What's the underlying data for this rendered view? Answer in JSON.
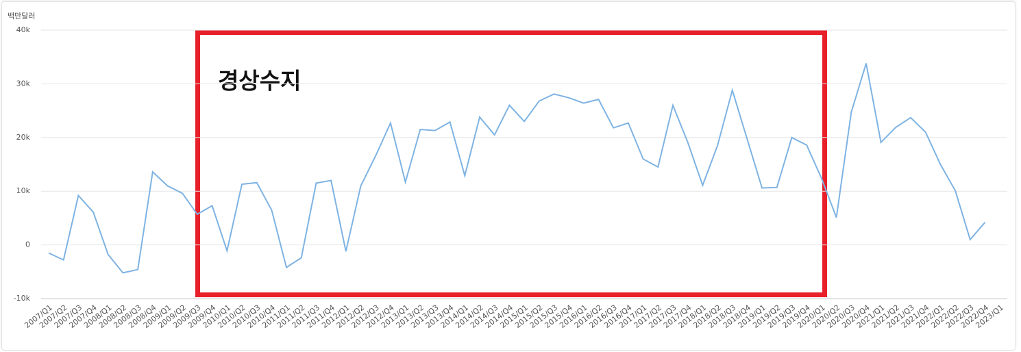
{
  "chart_data": {
    "type": "line",
    "y_label": "백만달러",
    "annotation": "경상수지",
    "color": "#7eb3e3",
    "ylim": [
      -10000,
      40000
    ],
    "yticks": [
      {
        "value": -10000,
        "label": "-10k"
      },
      0,
      {
        "value": 10000,
        "label": "10k"
      },
      {
        "value": 20000,
        "label": "20k"
      },
      {
        "value": 30000,
        "label": "30k"
      },
      {
        "value": 40000,
        "label": "40k"
      }
    ],
    "grid": true,
    "categories": [
      "2007/Q1",
      "2007/Q2",
      "2007/Q3",
      "2007/Q4",
      "2008/Q1",
      "2008/Q2",
      "2008/Q3",
      "2008/Q4",
      "2009/Q1",
      "2009/Q2",
      "2009/Q3",
      "2009/Q4",
      "2010/Q1",
      "2010/Q2",
      "2010/Q3",
      "2010/Q4",
      "2011/Q1",
      "2011/Q2",
      "2011/Q3",
      "2011/Q4",
      "2012/Q1",
      "2012/Q2",
      "2012/Q3",
      "2012/Q4",
      "2013/Q1",
      "2013/Q2",
      "2013/Q3",
      "2013/Q4",
      "2014/Q1",
      "2014/Q2",
      "2014/Q3",
      "2014/Q4",
      "2015/Q1",
      "2015/Q2",
      "2015/Q3",
      "2015/Q4",
      "2016/Q1",
      "2016/Q2",
      "2016/Q3",
      "2016/Q4",
      "2017/Q1",
      "2017/Q2",
      "2017/Q3",
      "2017/Q4",
      "2018/Q1",
      "2018/Q2",
      "2018/Q3",
      "2018/Q4",
      "2019/Q1",
      "2019/Q2",
      "2019/Q3",
      "2019/Q4",
      "2020/Q1",
      "2020/Q2",
      "2020/Q3",
      "2020/Q4",
      "2021/Q1",
      "2021/Q2",
      "2021/Q3",
      "2021/Q4",
      "2022/Q1",
      "2022/Q2",
      "2022/Q3",
      "2022/Q4",
      "2023/Q1"
    ],
    "values": [
      -1500,
      -2800,
      9200,
      6100,
      -1800,
      -5200,
      -4600,
      13600,
      11000,
      9600,
      5700,
      7300,
      -1100,
      11300,
      11600,
      6500,
      -4200,
      -2400,
      11500,
      12000,
      -1200,
      11000,
      16600,
      22700,
      11700,
      21500,
      21300,
      22900,
      12900,
      23800,
      20500,
      26000,
      23000,
      26800,
      28100,
      27400,
      26400,
      27100,
      21800,
      22700,
      16000,
      14500,
      26000,
      19100,
      11100,
      18500,
      28800,
      19700,
      10600,
      10700,
      20000,
      18600,
      12400,
      5100,
      24700,
      33800,
      19100,
      21900,
      23700,
      21000,
      15000,
      10100,
      1000,
      4200,
      null
    ]
  }
}
